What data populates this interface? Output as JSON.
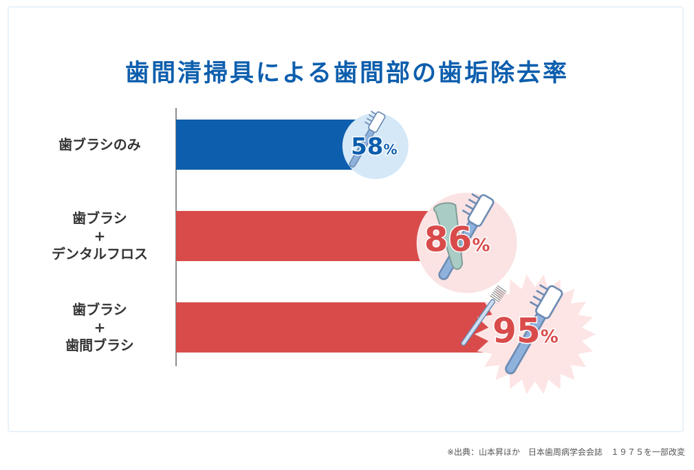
{
  "colors": {
    "title": "#0d5ead",
    "blue_bar": "#0d5ead",
    "red_bar": "#d94b4b",
    "label_text": "#333333",
    "axis": "#8c8c8c",
    "blue_badge_bg": "#d4e8f8",
    "red_badge_bg": "#fbe3e3",
    "brush_outline": "#6b8bb3",
    "floss_fill": "#a9ccc4",
    "burst_bg": "#fde5e5"
  },
  "chart_data": {
    "type": "bar",
    "orientation": "horizontal",
    "title": "歯間清掃具による歯間部の歯垢除去率",
    "xlim": [
      0,
      100
    ],
    "categories": [
      {
        "lines": [
          "歯ブラシのみ"
        ]
      },
      {
        "lines": [
          "歯ブラシ",
          "+",
          "デンタルフロス"
        ]
      },
      {
        "lines": [
          "歯ブラシ",
          "+",
          "歯間ブラシ"
        ]
      }
    ],
    "values": [
      58,
      86,
      95
    ],
    "value_labels": [
      {
        "number": "58",
        "unit": "%"
      },
      {
        "number": "86",
        "unit": "%"
      },
      {
        "number": "95",
        "unit": "%"
      }
    ],
    "bar_colors": [
      "#0d5ead",
      "#d94b4b",
      "#d94b4b"
    ],
    "badge_icons": [
      "toothbrush-icon",
      "floss-and-toothbrush-icon",
      "interdental-brush-and-toothbrush-icon"
    ]
  },
  "source_note": "※出典：山本昇ほか　日本歯周病学会会誌　１９７５を一部改変"
}
